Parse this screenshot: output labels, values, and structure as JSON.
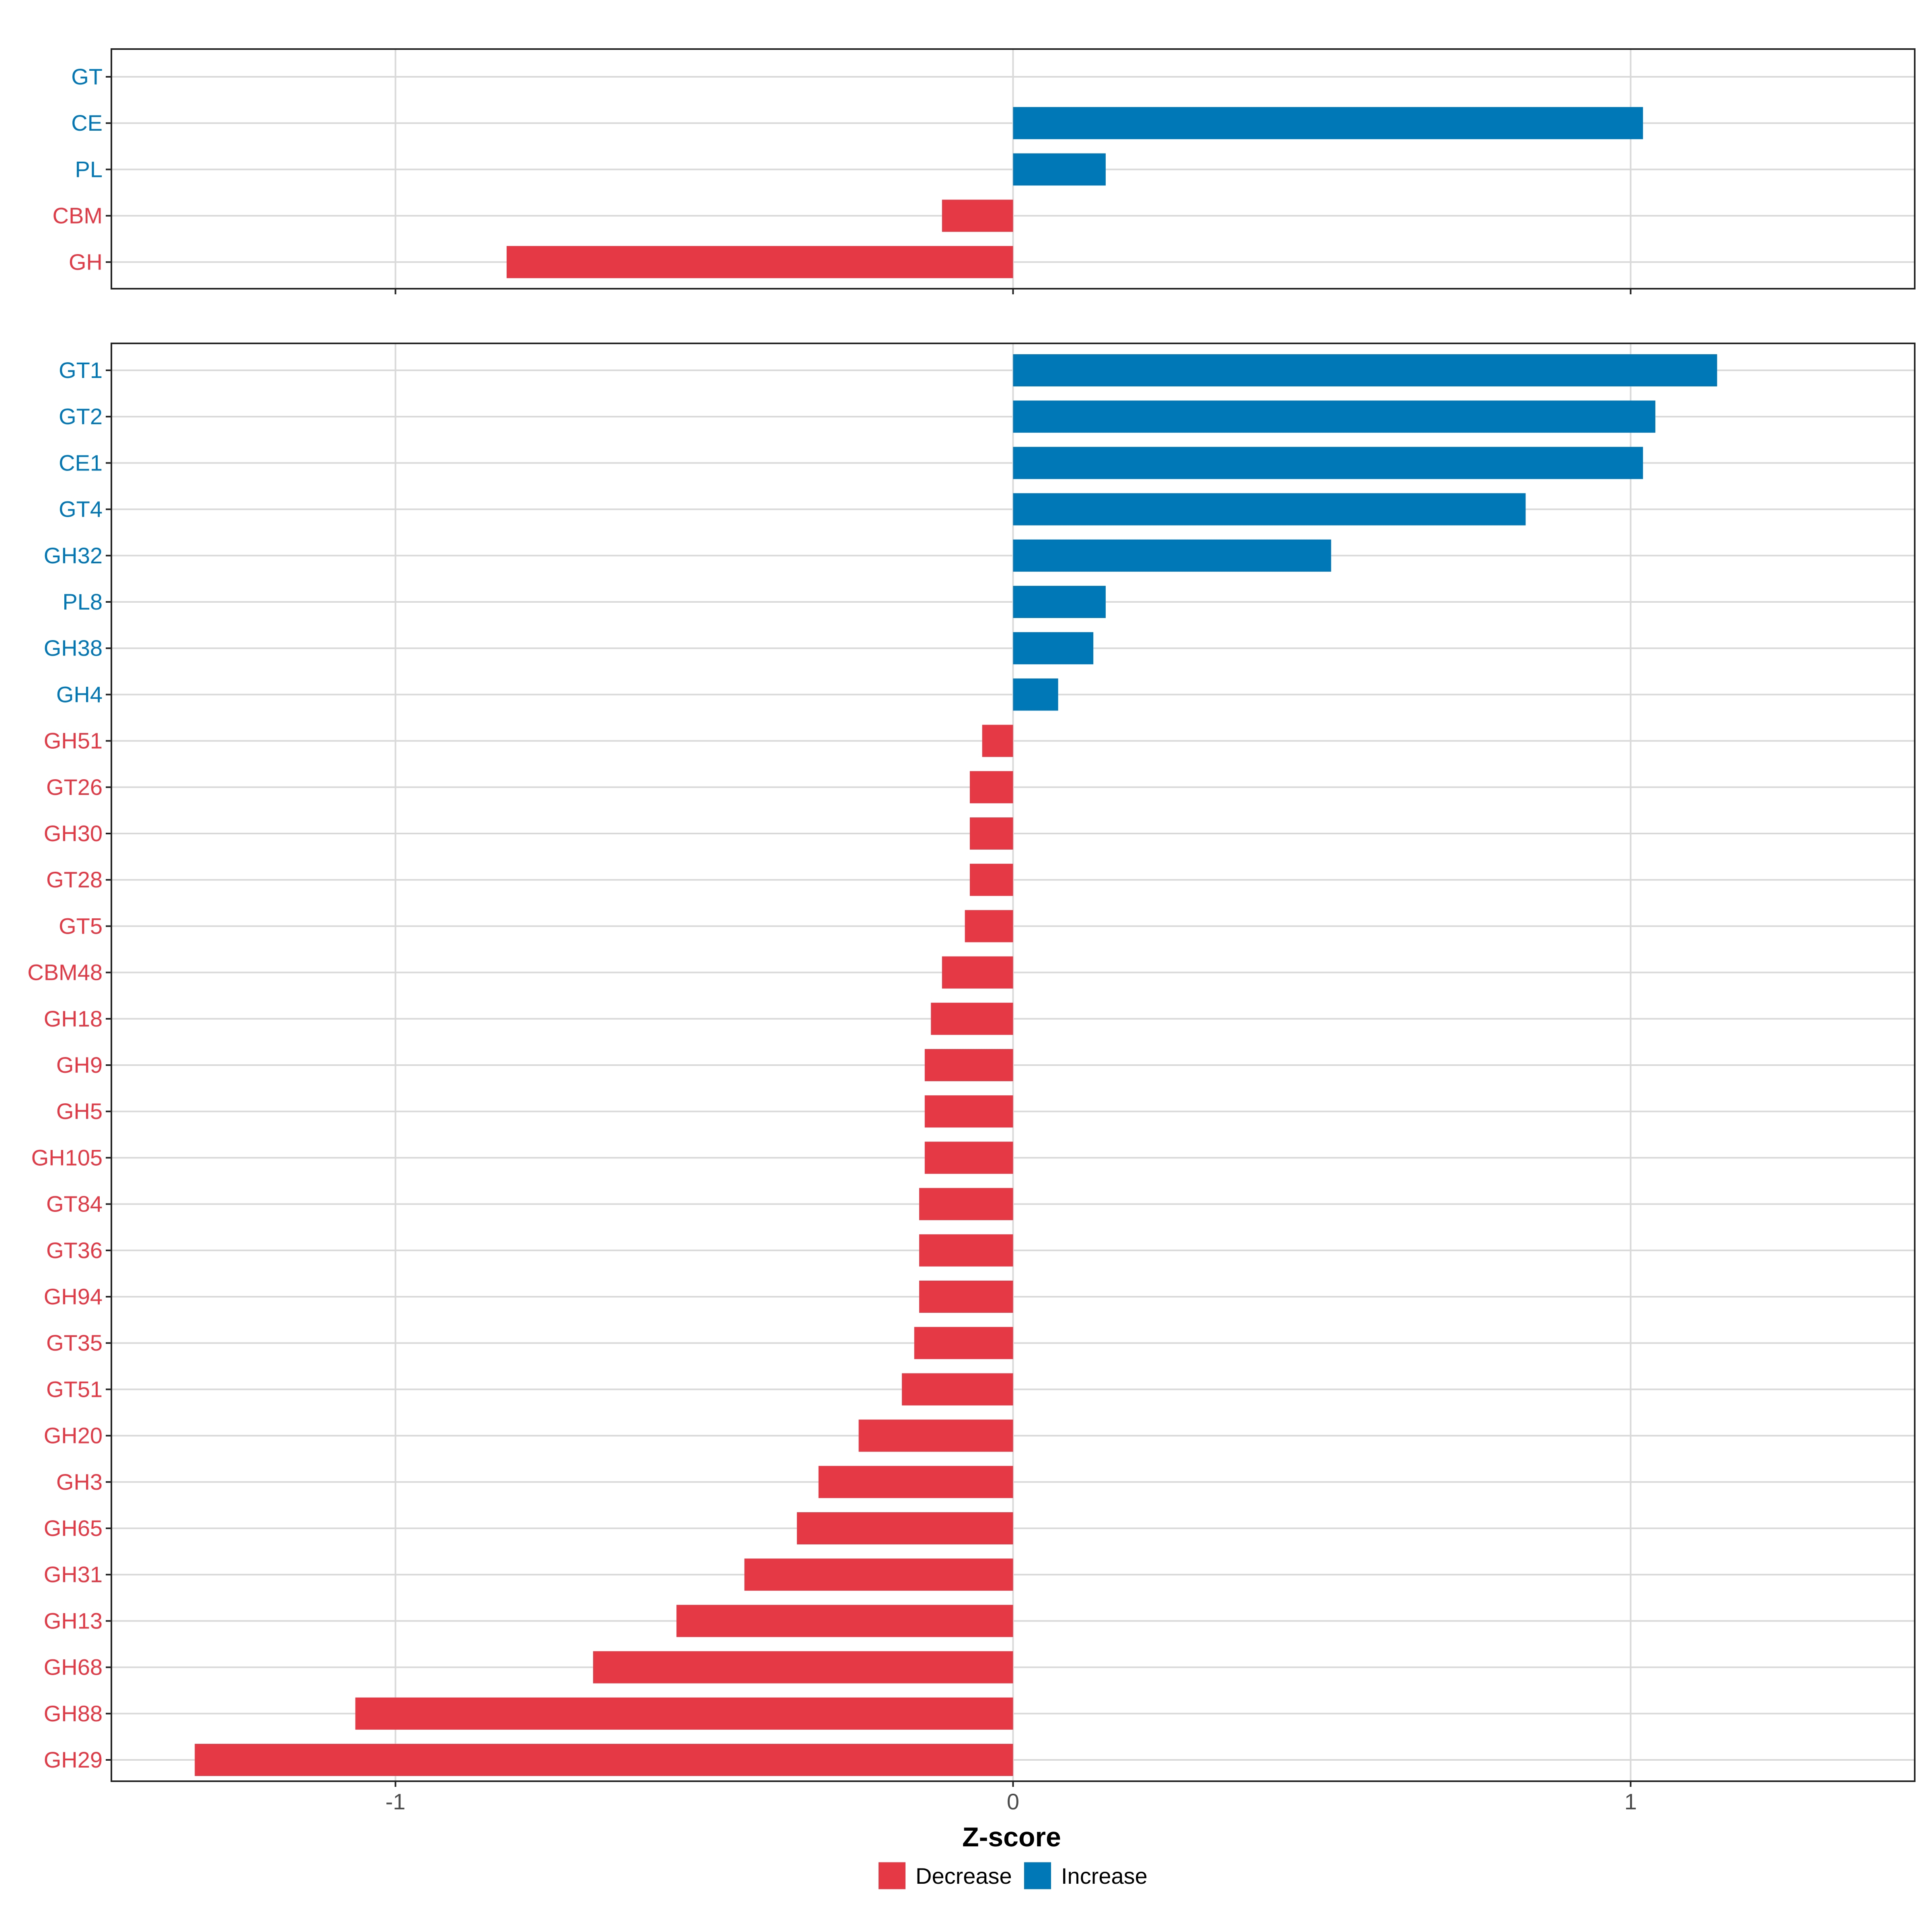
{
  "colors": {
    "decrease": "#E63946",
    "increase": "#0077B6",
    "grid": "#D9D9D9",
    "frame": "#222222",
    "tick_label": "#4D4D4D"
  },
  "chart_data": [
    {
      "type": "bar",
      "orientation": "horizontal",
      "panel": "top",
      "categories": [
        "GT",
        "CE",
        "PL",
        "CBM",
        "GH"
      ],
      "values": [
        0,
        1.02,
        0.15,
        -0.115,
        -0.82
      ],
      "xlim": [
        -1.46,
        1.46
      ],
      "xticks": [
        -1,
        0,
        1
      ],
      "xtick_labels": [],
      "grid": true
    },
    {
      "type": "bar",
      "orientation": "horizontal",
      "panel": "bottom",
      "categories": [
        "GT1",
        "GT2",
        "CE1",
        "GT4",
        "GH32",
        "PL8",
        "GH38",
        "GH4",
        "GH51",
        "GT26",
        "GH30",
        "GT28",
        "GT5",
        "CBM48",
        "GH18",
        "GH9",
        "GH5",
        "GH105",
        "GT84",
        "GT36",
        "GH94",
        "GT35",
        "GT51",
        "GH20",
        "GH3",
        "GH65",
        "GH31",
        "GH13",
        "GH68",
        "GH88",
        "GH29"
      ],
      "values": [
        1.14,
        1.04,
        1.02,
        0.83,
        0.515,
        0.15,
        0.13,
        0.073,
        -0.05,
        -0.07,
        -0.07,
        -0.07,
        -0.078,
        -0.115,
        -0.133,
        -0.143,
        -0.143,
        -0.143,
        -0.152,
        -0.152,
        -0.152,
        -0.16,
        -0.18,
        -0.25,
        -0.315,
        -0.35,
        -0.435,
        -0.545,
        -0.68,
        -1.065,
        -1.325
      ],
      "xlim": [
        -1.46,
        1.46
      ],
      "xticks": [
        -1,
        0,
        1
      ],
      "xtick_labels": [
        "-1",
        "0",
        "1"
      ],
      "xlabel": "Z-score",
      "grid": true
    }
  ],
  "legend": {
    "position": "bottom",
    "items": [
      {
        "key": "decrease",
        "label": "Decrease"
      },
      {
        "key": "increase",
        "label": "Increase"
      }
    ]
  }
}
